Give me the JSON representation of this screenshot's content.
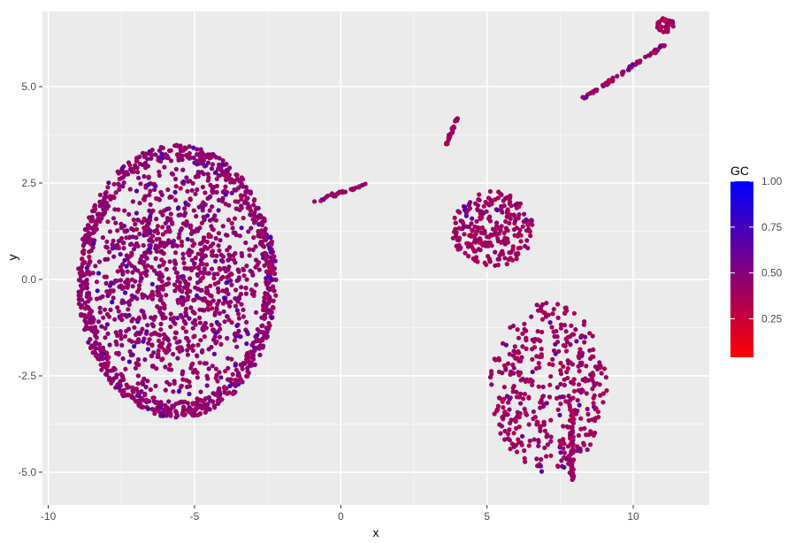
{
  "chart_data": {
    "type": "scatter",
    "title": "",
    "xlabel": "x",
    "ylabel": "y",
    "xlim": [
      -10.2,
      12.6
    ],
    "ylim": [
      -5.85,
      6.95
    ],
    "x_ticks": [
      -10,
      -5,
      0,
      5,
      10
    ],
    "x_tick_labels": [
      "-10",
      "-5",
      "0",
      "5",
      "10"
    ],
    "y_ticks": [
      -5,
      -2.5,
      0,
      2.5,
      5
    ],
    "y_tick_labels": [
      "-5.0",
      "-2.5",
      "0.0",
      "2.5",
      "5.0"
    ],
    "grid": true,
    "background": "#ebebeb",
    "grid_major_color": "#ffffff",
    "color_scale": {
      "title": "GC",
      "low": "#ff0000",
      "high": "#0000ff",
      "range": [
        0.04,
        1.0
      ],
      "breaks": [
        0.25,
        0.5,
        0.75,
        1.0
      ],
      "break_labels": [
        "0.25",
        "0.50",
        "0.75",
        "1.00"
      ],
      "legend_position": "right"
    },
    "clusters": [
      {
        "shape": "ellipse",
        "center": [
          -5.6,
          -0.05
        ],
        "radii": [
          3.4,
          3.55
        ],
        "gc_mean": 0.45,
        "approx_points": 1900
      },
      {
        "shape": "segment",
        "from": [
          -0.9,
          2.0
        ],
        "to": [
          0.9,
          2.5
        ],
        "gc_mean": 0.4,
        "approx_points": 30
      },
      {
        "shape": "segment",
        "from": [
          3.6,
          3.5
        ],
        "to": [
          4.0,
          4.2
        ],
        "gc_mean": 0.4,
        "approx_points": 25
      },
      {
        "shape": "blob",
        "center": [
          5.2,
          1.3
        ],
        "radii": [
          1.4,
          1.0
        ],
        "gc_mean": 0.4,
        "approx_points": 260
      },
      {
        "shape": "blob",
        "center": [
          7.1,
          -2.8
        ],
        "radii": [
          2.0,
          2.2
        ],
        "gc_mean": 0.4,
        "approx_points": 420
      },
      {
        "shape": "segment",
        "from": [
          8.3,
          4.7
        ],
        "to": [
          11.1,
          6.1
        ],
        "gc_mean": 0.4,
        "approx_points": 70
      },
      {
        "shape": "blob",
        "center": [
          11.1,
          6.6
        ],
        "radii": [
          0.3,
          0.2
        ],
        "gc_mean": 0.4,
        "approx_points": 40
      }
    ]
  }
}
